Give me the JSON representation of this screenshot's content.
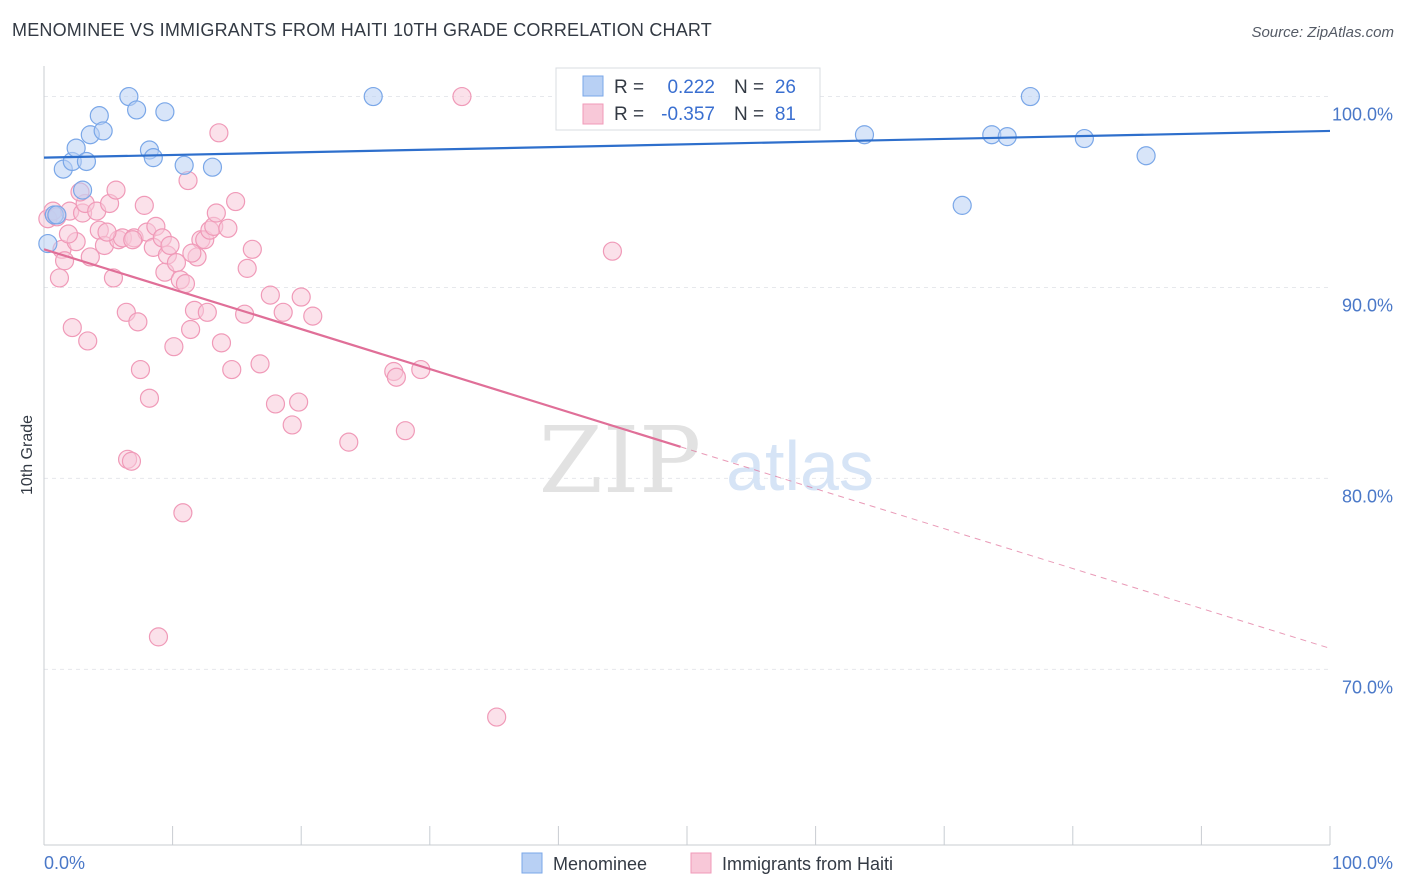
{
  "title": "MENOMINEE VS IMMIGRANTS FROM HAITI 10TH GRADE CORRELATION CHART",
  "source": "Source: ZipAtlas.com",
  "watermark": {
    "zip": "ZIP",
    "atlas": "atlas"
  },
  "chart_data": {
    "type": "scatter",
    "title": "MENOMINEE VS IMMIGRANTS FROM HAITI 10TH GRADE CORRELATION CHART",
    "xlabel": "",
    "ylabel": "10th Grade",
    "xlim": [
      0,
      100
    ],
    "ylim": [
      60.8,
      101.6
    ],
    "x_tick_labels": {
      "left": "0.0%",
      "right": "100.0%"
    },
    "y_ticks": [
      {
        "value": 100,
        "label": "100.0%"
      },
      {
        "value": 90,
        "label": "90.0%"
      },
      {
        "value": 80,
        "label": "80.0%"
      },
      {
        "value": 70,
        "label": "70.0%"
      }
    ],
    "legend": [
      {
        "r_label": "R =",
        "r_value": "0.222",
        "n_label": "N =",
        "n_value": "26"
      },
      {
        "r_label": "R =",
        "r_value": "-0.357",
        "n_label": "N =",
        "n_value": "81"
      }
    ],
    "series": [
      {
        "name": "Menominee",
        "color": "#7aa7e8",
        "fill": "#b8d0f4",
        "line_color": "#2e6fcc",
        "trend": {
          "x0": 0,
          "y0": 96.8,
          "x1": 100,
          "y1": 98.2,
          "solid_to": 100
        },
        "points": [
          [
            0.3,
            92.3
          ],
          [
            0.8,
            93.8
          ],
          [
            1.5,
            96.2
          ],
          [
            2.2,
            96.6
          ],
          [
            2.5,
            97.3
          ],
          [
            3.3,
            96.6
          ],
          [
            3.0,
            95.1
          ],
          [
            3.6,
            98.0
          ],
          [
            4.3,
            99.0
          ],
          [
            4.6,
            98.2
          ],
          [
            6.6,
            100.0
          ],
          [
            7.2,
            99.3
          ],
          [
            8.2,
            97.2
          ],
          [
            8.5,
            96.8
          ],
          [
            9.4,
            99.2
          ],
          [
            10.9,
            96.4
          ],
          [
            13.1,
            96.3
          ],
          [
            25.6,
            100.0
          ],
          [
            63.8,
            98.0
          ],
          [
            71.4,
            94.3
          ],
          [
            73.7,
            98.0
          ],
          [
            74.9,
            97.9
          ],
          [
            76.7,
            100.0
          ],
          [
            80.9,
            97.8
          ],
          [
            85.7,
            96.9
          ],
          [
            1.0,
            93.8
          ]
        ]
      },
      {
        "name": "Immigrants from Haiti",
        "color": "#f09ab8",
        "fill": "#f8c8d8",
        "line_color": "#e06f98",
        "trend": {
          "x0": 0,
          "y0": 92.0,
          "x1": 100,
          "y1": 71.1,
          "solid_to": 49.5
        },
        "points": [
          [
            0.3,
            93.6
          ],
          [
            0.7,
            94.0
          ],
          [
            1.0,
            93.7
          ],
          [
            1.2,
            90.5
          ],
          [
            1.4,
            92.0
          ],
          [
            1.6,
            91.4
          ],
          [
            2.0,
            94.0
          ],
          [
            2.2,
            87.9
          ],
          [
            2.5,
            92.4
          ],
          [
            3.0,
            93.9
          ],
          [
            3.2,
            94.4
          ],
          [
            3.4,
            87.2
          ],
          [
            3.6,
            91.6
          ],
          [
            4.1,
            94.0
          ],
          [
            4.3,
            93.0
          ],
          [
            4.7,
            92.2
          ],
          [
            5.1,
            94.4
          ],
          [
            5.4,
            90.5
          ],
          [
            5.6,
            95.1
          ],
          [
            5.8,
            92.5
          ],
          [
            6.1,
            92.6
          ],
          [
            6.4,
            88.7
          ],
          [
            6.5,
            81.0
          ],
          [
            6.8,
            80.9
          ],
          [
            7.0,
            92.6
          ],
          [
            7.3,
            88.2
          ],
          [
            7.5,
            85.7
          ],
          [
            7.8,
            94.3
          ],
          [
            8.0,
            92.9
          ],
          [
            8.2,
            84.2
          ],
          [
            8.5,
            92.1
          ],
          [
            8.7,
            93.2
          ],
          [
            8.9,
            71.7
          ],
          [
            9.2,
            92.6
          ],
          [
            9.4,
            90.8
          ],
          [
            9.6,
            91.7
          ],
          [
            9.8,
            92.2
          ],
          [
            10.1,
            86.9
          ],
          [
            10.3,
            91.3
          ],
          [
            10.6,
            90.4
          ],
          [
            10.8,
            78.2
          ],
          [
            11.0,
            90.2
          ],
          [
            11.2,
            95.6
          ],
          [
            11.4,
            87.8
          ],
          [
            11.7,
            88.8
          ],
          [
            11.9,
            91.6
          ],
          [
            12.2,
            92.5
          ],
          [
            12.5,
            92.5
          ],
          [
            12.7,
            88.7
          ],
          [
            12.9,
            93.0
          ],
          [
            13.2,
            93.2
          ],
          [
            13.4,
            93.9
          ],
          [
            13.6,
            98.1
          ],
          [
            13.8,
            87.1
          ],
          [
            14.3,
            93.1
          ],
          [
            14.6,
            85.7
          ],
          [
            14.9,
            94.5
          ],
          [
            15.6,
            88.6
          ],
          [
            15.8,
            91.0
          ],
          [
            16.2,
            92.0
          ],
          [
            17.6,
            89.6
          ],
          [
            18.0,
            83.9
          ],
          [
            18.6,
            88.7
          ],
          [
            19.3,
            82.8
          ],
          [
            19.8,
            84.0
          ],
          [
            20.0,
            89.5
          ],
          [
            20.9,
            88.5
          ],
          [
            23.7,
            81.9
          ],
          [
            27.2,
            85.6
          ],
          [
            27.4,
            85.3
          ],
          [
            28.1,
            82.5
          ],
          [
            29.3,
            85.7
          ],
          [
            32.5,
            100.0
          ],
          [
            35.2,
            67.5
          ],
          [
            44.2,
            91.9
          ],
          [
            1.9,
            92.8
          ],
          [
            2.8,
            95.0
          ],
          [
            4.9,
            92.9
          ],
          [
            6.9,
            92.5
          ],
          [
            11.5,
            91.8
          ],
          [
            16.8,
            86.0
          ]
        ]
      }
    ]
  },
  "bottom_legend": [
    {
      "label": "Menominee"
    },
    {
      "label": "Immigrants from Haiti"
    }
  ]
}
